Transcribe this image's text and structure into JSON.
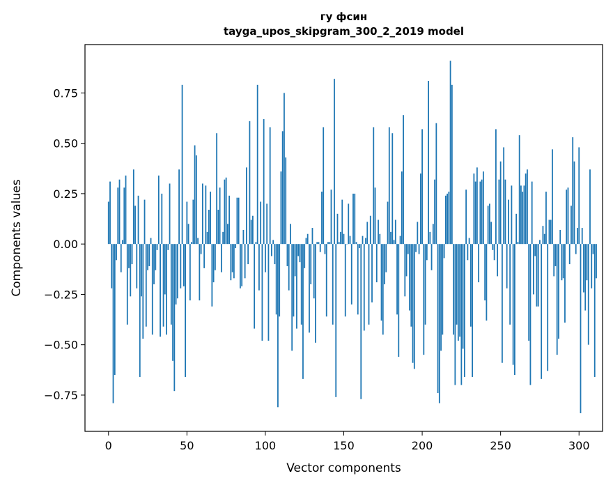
{
  "chart_data": {
    "type": "bar",
    "title_lines": [
      "гу фсин",
      "tayga_upos_skipgram_300_2_2019 model"
    ],
    "xlabel": "Vector components",
    "ylabel": "Components values",
    "xlim": [
      -15,
      315
    ],
    "ylim": [
      -0.93,
      0.99
    ],
    "xticks": [
      0,
      50,
      100,
      150,
      200,
      250,
      300
    ],
    "yticks": [
      -0.75,
      -0.5,
      -0.25,
      0.0,
      0.25,
      0.5,
      0.75
    ],
    "ytick_labels": [
      "−0.75",
      "−0.50",
      "−0.25",
      "0.00",
      "0.25",
      "0.50",
      "0.75"
    ],
    "grid": false,
    "bar_color": "#1f77b4",
    "values": [
      0.21,
      0.31,
      -0.22,
      -0.79,
      -0.65,
      -0.08,
      0.28,
      0.32,
      -0.14,
      0.02,
      0.28,
      0.34,
      -0.4,
      -0.12,
      -0.26,
      -0.1,
      0.37,
      0.19,
      -0.22,
      0.24,
      -0.66,
      -0.26,
      -0.47,
      0.22,
      -0.41,
      -0.13,
      -0.11,
      0.03,
      -0.45,
      -0.2,
      -0.13,
      -0.03,
      0.34,
      -0.46,
      0.25,
      -0.41,
      -0.25,
      -0.45,
      -0.03,
      0.3,
      -0.4,
      -0.58,
      -0.73,
      -0.3,
      -0.27,
      0.37,
      -0.22,
      0.79,
      -0.21,
      -0.66,
      0.21,
      0.1,
      -0.28,
      0.01,
      0.22,
      0.49,
      0.44,
      0.03,
      -0.28,
      -0.05,
      0.3,
      -0.12,
      0.29,
      0.06,
      0.17,
      0.26,
      -0.31,
      -0.19,
      -0.13,
      0.55,
      0.17,
      0.28,
      -0.14,
      0.06,
      0.32,
      0.33,
      0.1,
      0.24,
      -0.18,
      -0.14,
      -0.17,
      -0.02,
      0.23,
      0.23,
      -0.22,
      -0.21,
      0.07,
      -0.17,
      0.38,
      -0.1,
      0.61,
      0.12,
      0.14,
      -0.42,
      0.01,
      0.79,
      -0.23,
      0.21,
      -0.48,
      0.62,
      -0.14,
      0.2,
      -0.48,
      0.58,
      -0.06,
      0.02,
      -0.1,
      -0.35,
      -0.81,
      -0.36,
      0.36,
      0.56,
      0.75,
      0.43,
      -0.11,
      -0.23,
      0.1,
      -0.53,
      -0.36,
      -0.16,
      -0.42,
      -0.06,
      -0.09,
      -0.4,
      -0.67,
      -0.12,
      0.03,
      0.05,
      -0.44,
      -0.2,
      0.08,
      -0.27,
      -0.49,
      0.01,
      0.01,
      -0.04,
      0.26,
      0.58,
      -0.05,
      -0.36,
      0.01,
      0.01,
      0.27,
      -0.4,
      0.82,
      -0.76,
      0.15,
      0.01,
      0.06,
      0.22,
      0.05,
      -0.36,
      0.0,
      0.2,
      0.04,
      -0.3,
      0.25,
      0.25,
      0.01,
      -0.35,
      -0.02,
      -0.77,
      0.04,
      -0.43,
      0.03,
      0.11,
      -0.4,
      0.14,
      -0.29,
      0.58,
      0.28,
      -0.19,
      0.12,
      0.05,
      -0.38,
      -0.45,
      -0.2,
      -0.14,
      0.21,
      0.58,
      0.06,
      0.55,
      0.02,
      0.12,
      -0.35,
      -0.56,
      0.04,
      0.36,
      0.64,
      -0.26,
      -0.16,
      -0.05,
      -0.33,
      -0.41,
      -0.59,
      -0.62,
      -0.04,
      0.11,
      -0.05,
      0.35,
      0.57,
      -0.55,
      -0.4,
      -0.08,
      0.81,
      0.06,
      -0.13,
      0.1,
      0.32,
      0.6,
      -0.74,
      -0.79,
      -0.53,
      -0.45,
      -0.07,
      0.24,
      0.25,
      0.26,
      0.91,
      0.79,
      -0.45,
      -0.7,
      -0.4,
      -0.48,
      -0.46,
      -0.7,
      -0.52,
      -0.66,
      0.27,
      -0.08,
      0.03,
      -0.41,
      -0.66,
      0.35,
      0.31,
      0.38,
      -0.19,
      0.31,
      0.32,
      0.36,
      -0.28,
      -0.38,
      0.19,
      0.2,
      0.11,
      -0.03,
      -0.08,
      0.57,
      -0.16,
      0.32,
      0.41,
      -0.59,
      0.48,
      0.32,
      -0.22,
      0.22,
      -0.4,
      0.29,
      -0.6,
      -0.65,
      0.15,
      0.01,
      0.54,
      0.29,
      0.26,
      0.29,
      0.35,
      0.37,
      -0.48,
      -0.7,
      0.31,
      -0.25,
      -0.06,
      -0.31,
      -0.31,
      0.02,
      -0.67,
      0.09,
      0.05,
      0.26,
      -0.63,
      0.12,
      0.12,
      0.47,
      -0.16,
      -0.11,
      -0.55,
      -0.47,
      0.07,
      -0.18,
      -0.17,
      -0.39,
      0.27,
      0.28,
      -0.1,
      0.19,
      0.53,
      0.41,
      -0.05,
      0.08,
      0.48,
      -0.84,
      0.08,
      -0.24,
      -0.33,
      -0.18,
      -0.5,
      0.37,
      -0.22,
      -0.05,
      -0.66,
      -0.17
    ]
  }
}
